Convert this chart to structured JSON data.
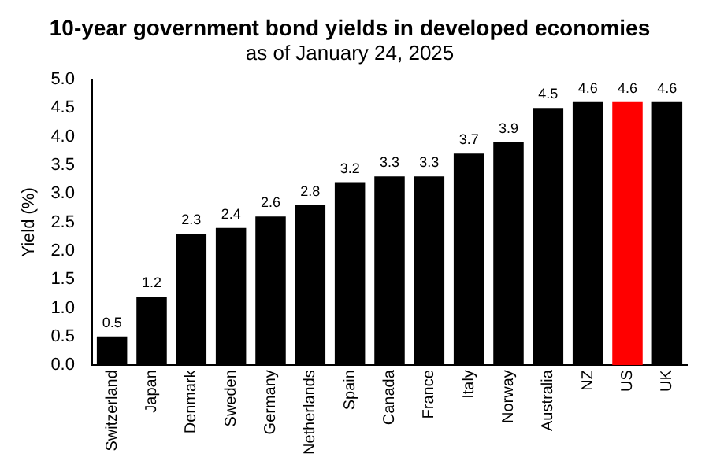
{
  "chart_data": {
    "type": "bar",
    "title": "10-year government bond yields in developed economies",
    "subtitle": "as of January 24, 2025",
    "ylabel": "Yield (%)",
    "categories": [
      "Switzerland",
      "Japan",
      "Denmark",
      "Sweden",
      "Germany",
      "Netherlands",
      "Spain",
      "Canada",
      "France",
      "Italy",
      "Norway",
      "Australia",
      "NZ",
      "US",
      "UK"
    ],
    "values": [
      0.5,
      1.2,
      2.3,
      2.4,
      2.6,
      2.8,
      3.2,
      3.3,
      3.3,
      3.7,
      3.9,
      4.5,
      4.6,
      4.6,
      4.6
    ],
    "colors": [
      "#000000",
      "#000000",
      "#000000",
      "#000000",
      "#000000",
      "#000000",
      "#000000",
      "#000000",
      "#000000",
      "#000000",
      "#000000",
      "#000000",
      "#000000",
      "#ff0000",
      "#000000"
    ],
    "ylim": [
      0,
      5
    ],
    "yticks": [
      {
        "value": 0,
        "label": "0.0"
      },
      {
        "value": 0.5,
        "label": "0.5"
      },
      {
        "value": 1,
        "label": "1.0"
      },
      {
        "value": 1.5,
        "label": "1.5"
      },
      {
        "value": 2,
        "label": "2.0"
      },
      {
        "value": 2.5,
        "label": "2.5"
      },
      {
        "value": 3,
        "label": "3.0"
      },
      {
        "value": 3.5,
        "label": "3.5"
      },
      {
        "value": 4,
        "label": "4.0"
      },
      {
        "value": 4.5,
        "label": "4.5"
      },
      {
        "value": 5,
        "label": "5.0"
      }
    ],
    "data_labels": true,
    "grid": false,
    "legend": false
  }
}
